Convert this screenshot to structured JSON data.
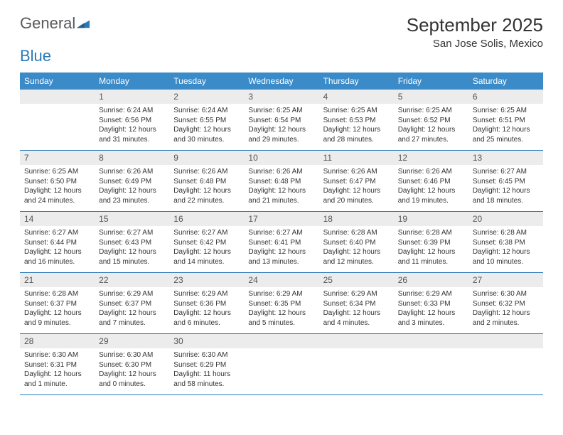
{
  "brand": {
    "text1": "General",
    "text2": "Blue",
    "color1": "#58595b",
    "color2": "#2a7ab8"
  },
  "header": {
    "title": "September 2025",
    "location": "San Jose Solis, Mexico"
  },
  "styling": {
    "header_bg": "#3b8bc9",
    "header_fg": "#ffffff",
    "daynum_bg": "#ececec",
    "border_color": "#2a7ab8",
    "page_bg": "#ffffff",
    "cell_font_size": 10,
    "header_font_size": 12,
    "title_font_size": 26,
    "location_font_size": 15
  },
  "weekdays": [
    "Sunday",
    "Monday",
    "Tuesday",
    "Wednesday",
    "Thursday",
    "Friday",
    "Saturday"
  ],
  "weeks": [
    {
      "nums": [
        "",
        "1",
        "2",
        "3",
        "4",
        "5",
        "6"
      ],
      "cells": [
        {},
        {
          "sunrise": "Sunrise: 6:24 AM",
          "sunset": "Sunset: 6:56 PM",
          "day1": "Daylight: 12 hours",
          "day2": "and 31 minutes."
        },
        {
          "sunrise": "Sunrise: 6:24 AM",
          "sunset": "Sunset: 6:55 PM",
          "day1": "Daylight: 12 hours",
          "day2": "and 30 minutes."
        },
        {
          "sunrise": "Sunrise: 6:25 AM",
          "sunset": "Sunset: 6:54 PM",
          "day1": "Daylight: 12 hours",
          "day2": "and 29 minutes."
        },
        {
          "sunrise": "Sunrise: 6:25 AM",
          "sunset": "Sunset: 6:53 PM",
          "day1": "Daylight: 12 hours",
          "day2": "and 28 minutes."
        },
        {
          "sunrise": "Sunrise: 6:25 AM",
          "sunset": "Sunset: 6:52 PM",
          "day1": "Daylight: 12 hours",
          "day2": "and 27 minutes."
        },
        {
          "sunrise": "Sunrise: 6:25 AM",
          "sunset": "Sunset: 6:51 PM",
          "day1": "Daylight: 12 hours",
          "day2": "and 25 minutes."
        }
      ]
    },
    {
      "nums": [
        "7",
        "8",
        "9",
        "10",
        "11",
        "12",
        "13"
      ],
      "cells": [
        {
          "sunrise": "Sunrise: 6:25 AM",
          "sunset": "Sunset: 6:50 PM",
          "day1": "Daylight: 12 hours",
          "day2": "and 24 minutes."
        },
        {
          "sunrise": "Sunrise: 6:26 AM",
          "sunset": "Sunset: 6:49 PM",
          "day1": "Daylight: 12 hours",
          "day2": "and 23 minutes."
        },
        {
          "sunrise": "Sunrise: 6:26 AM",
          "sunset": "Sunset: 6:48 PM",
          "day1": "Daylight: 12 hours",
          "day2": "and 22 minutes."
        },
        {
          "sunrise": "Sunrise: 6:26 AM",
          "sunset": "Sunset: 6:48 PM",
          "day1": "Daylight: 12 hours",
          "day2": "and 21 minutes."
        },
        {
          "sunrise": "Sunrise: 6:26 AM",
          "sunset": "Sunset: 6:47 PM",
          "day1": "Daylight: 12 hours",
          "day2": "and 20 minutes."
        },
        {
          "sunrise": "Sunrise: 6:26 AM",
          "sunset": "Sunset: 6:46 PM",
          "day1": "Daylight: 12 hours",
          "day2": "and 19 minutes."
        },
        {
          "sunrise": "Sunrise: 6:27 AM",
          "sunset": "Sunset: 6:45 PM",
          "day1": "Daylight: 12 hours",
          "day2": "and 18 minutes."
        }
      ]
    },
    {
      "nums": [
        "14",
        "15",
        "16",
        "17",
        "18",
        "19",
        "20"
      ],
      "cells": [
        {
          "sunrise": "Sunrise: 6:27 AM",
          "sunset": "Sunset: 6:44 PM",
          "day1": "Daylight: 12 hours",
          "day2": "and 16 minutes."
        },
        {
          "sunrise": "Sunrise: 6:27 AM",
          "sunset": "Sunset: 6:43 PM",
          "day1": "Daylight: 12 hours",
          "day2": "and 15 minutes."
        },
        {
          "sunrise": "Sunrise: 6:27 AM",
          "sunset": "Sunset: 6:42 PM",
          "day1": "Daylight: 12 hours",
          "day2": "and 14 minutes."
        },
        {
          "sunrise": "Sunrise: 6:27 AM",
          "sunset": "Sunset: 6:41 PM",
          "day1": "Daylight: 12 hours",
          "day2": "and 13 minutes."
        },
        {
          "sunrise": "Sunrise: 6:28 AM",
          "sunset": "Sunset: 6:40 PM",
          "day1": "Daylight: 12 hours",
          "day2": "and 12 minutes."
        },
        {
          "sunrise": "Sunrise: 6:28 AM",
          "sunset": "Sunset: 6:39 PM",
          "day1": "Daylight: 12 hours",
          "day2": "and 11 minutes."
        },
        {
          "sunrise": "Sunrise: 6:28 AM",
          "sunset": "Sunset: 6:38 PM",
          "day1": "Daylight: 12 hours",
          "day2": "and 10 minutes."
        }
      ]
    },
    {
      "nums": [
        "21",
        "22",
        "23",
        "24",
        "25",
        "26",
        "27"
      ],
      "cells": [
        {
          "sunrise": "Sunrise: 6:28 AM",
          "sunset": "Sunset: 6:37 PM",
          "day1": "Daylight: 12 hours",
          "day2": "and 9 minutes."
        },
        {
          "sunrise": "Sunrise: 6:29 AM",
          "sunset": "Sunset: 6:37 PM",
          "day1": "Daylight: 12 hours",
          "day2": "and 7 minutes."
        },
        {
          "sunrise": "Sunrise: 6:29 AM",
          "sunset": "Sunset: 6:36 PM",
          "day1": "Daylight: 12 hours",
          "day2": "and 6 minutes."
        },
        {
          "sunrise": "Sunrise: 6:29 AM",
          "sunset": "Sunset: 6:35 PM",
          "day1": "Daylight: 12 hours",
          "day2": "and 5 minutes."
        },
        {
          "sunrise": "Sunrise: 6:29 AM",
          "sunset": "Sunset: 6:34 PM",
          "day1": "Daylight: 12 hours",
          "day2": "and 4 minutes."
        },
        {
          "sunrise": "Sunrise: 6:29 AM",
          "sunset": "Sunset: 6:33 PM",
          "day1": "Daylight: 12 hours",
          "day2": "and 3 minutes."
        },
        {
          "sunrise": "Sunrise: 6:30 AM",
          "sunset": "Sunset: 6:32 PM",
          "day1": "Daylight: 12 hours",
          "day2": "and 2 minutes."
        }
      ]
    },
    {
      "nums": [
        "28",
        "29",
        "30",
        "",
        "",
        "",
        ""
      ],
      "cells": [
        {
          "sunrise": "Sunrise: 6:30 AM",
          "sunset": "Sunset: 6:31 PM",
          "day1": "Daylight: 12 hours",
          "day2": "and 1 minute."
        },
        {
          "sunrise": "Sunrise: 6:30 AM",
          "sunset": "Sunset: 6:30 PM",
          "day1": "Daylight: 12 hours",
          "day2": "and 0 minutes."
        },
        {
          "sunrise": "Sunrise: 6:30 AM",
          "sunset": "Sunset: 6:29 PM",
          "day1": "Daylight: 11 hours",
          "day2": "and 58 minutes."
        },
        {},
        {},
        {},
        {}
      ]
    }
  ]
}
